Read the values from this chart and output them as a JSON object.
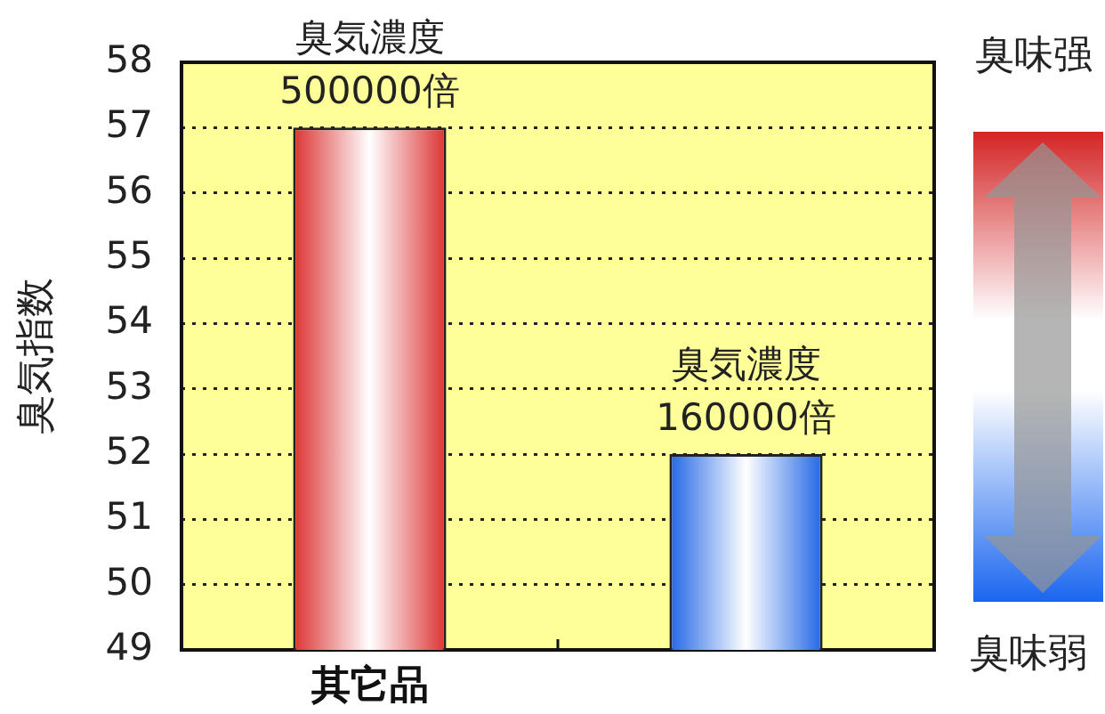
{
  "chart_data": {
    "type": "bar",
    "ylabel": "臭気指数",
    "categories": [
      "其它品",
      null
    ],
    "values": [
      57,
      52
    ],
    "colors": [
      "#dc3232",
      "#2266e6"
    ],
    "ylim": [
      49,
      58
    ],
    "yticks": [
      49,
      50,
      51,
      52,
      53,
      54,
      55,
      56,
      57,
      58
    ],
    "grid": "y",
    "legend": false,
    "value_labels": [
      "臭気濃度 500000倍",
      "臭気濃度 160000倍"
    ],
    "annotations": [
      "臭味强",
      "臭味弱"
    ]
  }
}
